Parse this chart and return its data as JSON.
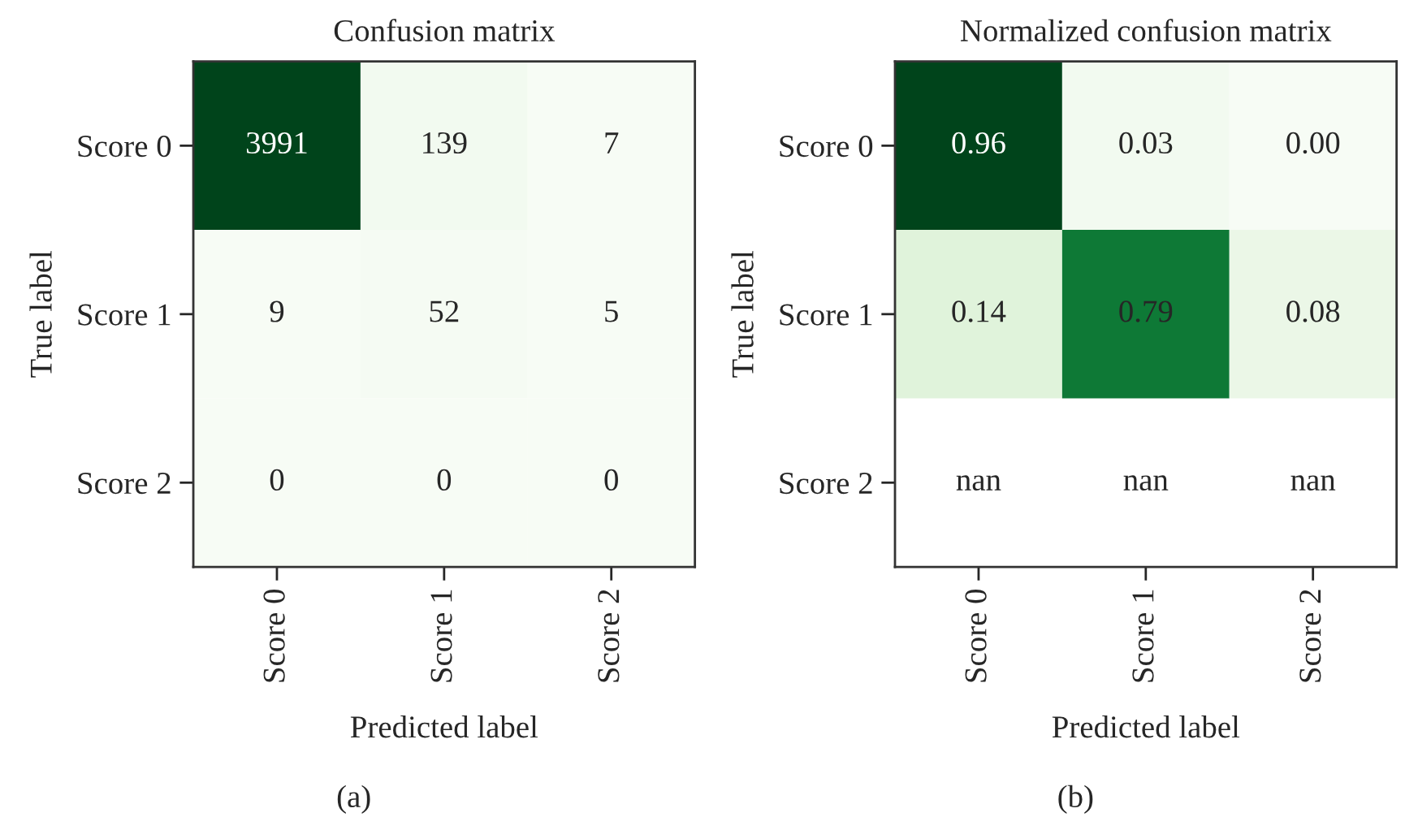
{
  "chart_data": [
    {
      "type": "heatmap",
      "title": "Confusion matrix",
      "xlabel": "Predicted label",
      "ylabel": "True label",
      "categories": [
        "Score 0",
        "Score 1",
        "Score 2"
      ],
      "y_categories": [
        "Score 0",
        "Score 1",
        "Score 2"
      ],
      "cells": [
        [
          3991,
          139,
          7
        ],
        [
          9,
          52,
          5
        ],
        [
          0,
          0,
          0
        ]
      ],
      "data_labels": true,
      "annotations": [
        "(a)"
      ]
    },
    {
      "type": "heatmap",
      "title": "Normalized confusion matrix",
      "xlabel": "Predicted label",
      "ylabel": "True label",
      "categories": [
        "Score 0",
        "Score 1",
        "Score 2"
      ],
      "y_categories": [
        "Score 0",
        "Score 1",
        "Score 2"
      ],
      "cells": [
        [
          0.96,
          0.03,
          0.0
        ],
        [
          0.14,
          0.79,
          0.08
        ],
        [
          null,
          null,
          null
        ]
      ],
      "cell_labels": [
        [
          "0.96",
          "0.03",
          "0.00"
        ],
        [
          "0.14",
          "0.79",
          "0.08"
        ],
        [
          "nan",
          "nan",
          "nan"
        ]
      ],
      "annotations": [
        "(b)"
      ]
    }
  ]
}
